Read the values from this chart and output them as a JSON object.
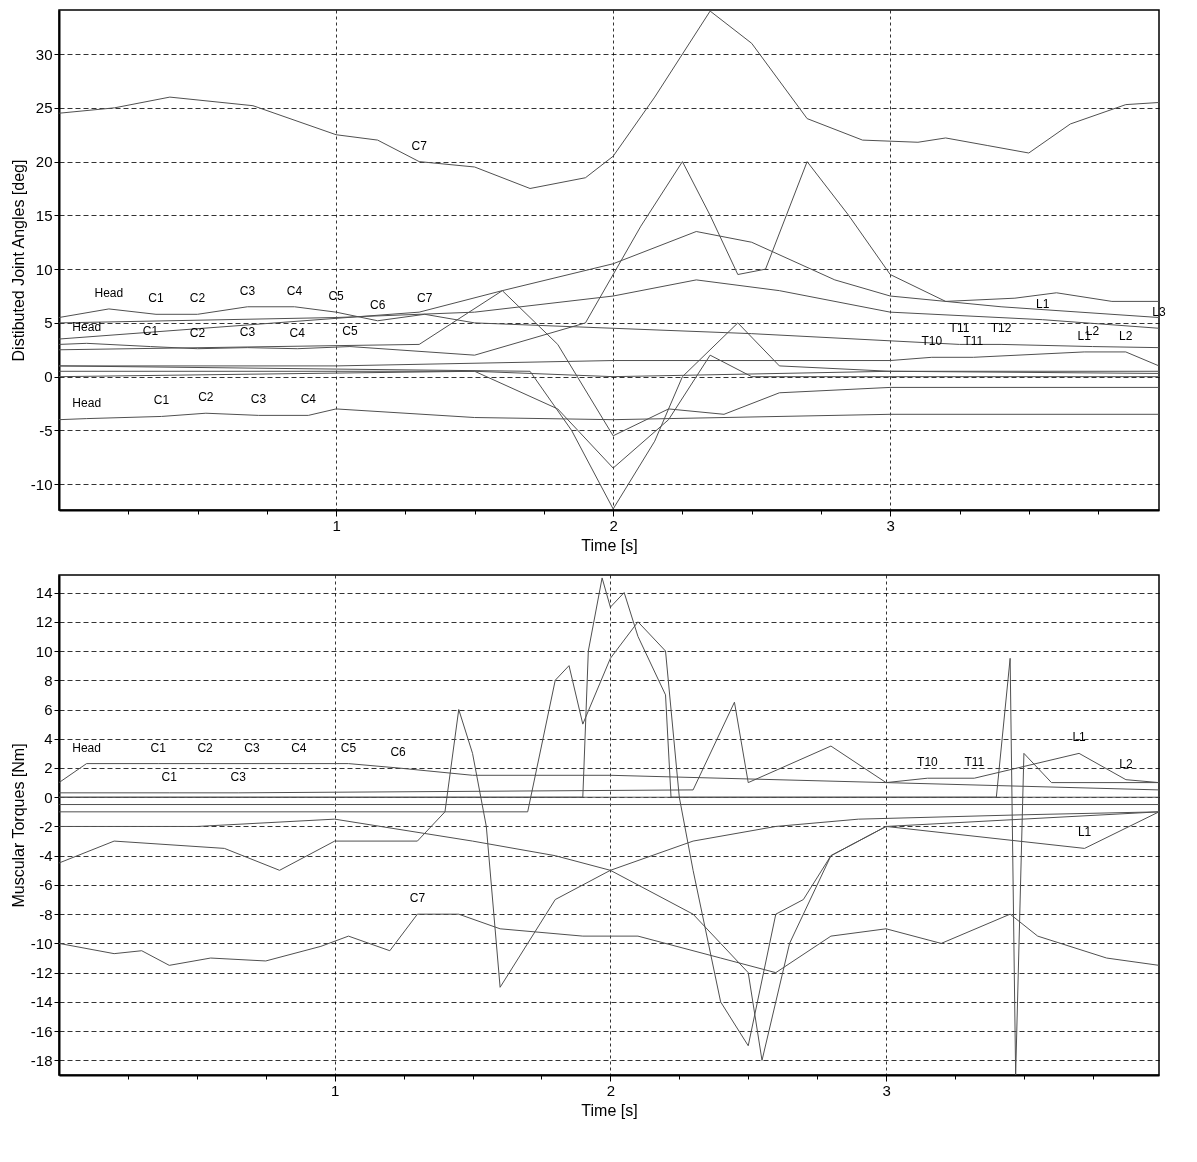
{
  "chart_data": [
    {
      "type": "line",
      "xlabel": "Time [s]",
      "ylabel": "Distibuted Joint Angles [deg]",
      "xlim": [
        0,
        3.97
      ],
      "ylim": [
        -12.4,
        34.1
      ],
      "grid": true,
      "legend": false,
      "line_style": "solid",
      "marker": "none",
      "xticks": [
        {
          "value": 0.25,
          "label": null
        },
        {
          "value": 0.5,
          "label": null
        },
        {
          "value": 0.75,
          "label": null
        },
        1,
        {
          "value": 1.25,
          "label": null
        },
        {
          "value": 1.5,
          "label": null
        },
        {
          "value": 1.75,
          "label": null
        },
        2,
        {
          "value": 2.25,
          "label": null
        },
        {
          "value": 2.5,
          "label": null
        },
        {
          "value": 2.75,
          "label": null
        },
        3,
        {
          "value": 3.25,
          "label": null
        },
        {
          "value": 3.5,
          "label": null
        },
        {
          "value": 3.75,
          "label": null
        }
      ],
      "yticks": [
        -10,
        -5,
        0,
        5,
        10,
        15,
        20,
        25,
        30
      ],
      "series": [
        {
          "color": "#505050",
          "x": [
            0,
            0.2,
            0.4,
            0.7,
            1,
            1.15,
            1.3,
            1.5,
            1.7,
            1.9,
            2.0,
            2.15,
            2.35,
            2.5,
            2.7,
            2.9,
            3.1,
            3.2,
            3.35,
            3.5,
            3.65,
            3.85,
            3.97
          ],
          "values": [
            24.5,
            25,
            26,
            25.2,
            22.5,
            22,
            20,
            19.5,
            17.5,
            18.5,
            20.5,
            26,
            34,
            31,
            24,
            22,
            21.8,
            22.2,
            21.5,
            20.8,
            23.5,
            25.3,
            25.5
          ]
        },
        {
          "color": "#505050",
          "x": [
            0,
            0.1,
            0.33,
            0.5,
            0.68,
            0.86,
            1.05,
            1.5,
            1.9,
            2.1,
            2.25,
            2.35,
            2.45,
            2.55,
            2.7,
            2.85,
            3.0,
            3.2,
            3.45,
            3.6,
            3.8,
            3.97
          ],
          "values": [
            3,
            3.1,
            2.8,
            2.6,
            2.7,
            2.6,
            2.8,
            2,
            5,
            14,
            20,
            15,
            9.5,
            10,
            20,
            15,
            9.5,
            7,
            7.3,
            7.8,
            7,
            7
          ]
        },
        {
          "color": "#505050",
          "x": [
            0,
            1.3,
            1.6,
            2.0,
            2.3,
            2.5,
            2.8,
            3.0,
            3.4,
            3.97
          ],
          "values": [
            3.5,
            6,
            8,
            10.5,
            13.5,
            12.5,
            9,
            7.5,
            6.5,
            5.5
          ]
        },
        {
          "color": "#505050",
          "x": [
            0,
            1,
            1.5,
            2,
            2.3,
            2.6,
            3,
            3.55,
            3.97
          ],
          "values": [
            5,
            5.5,
            6,
            7.5,
            9,
            8,
            6,
            5.3,
            4.5
          ]
        },
        {
          "color": "#505050",
          "x": [
            0,
            1.7,
            1.85,
            2.0,
            2.15,
            2.25,
            2.45,
            2.6,
            3,
            3.97
          ],
          "values": [
            1,
            0.5,
            -5,
            -12.3,
            -6,
            0,
            5,
            1,
            0.5,
            0.5
          ]
        },
        {
          "color": "#505050",
          "x": [
            0,
            1.5,
            1.8,
            2.0,
            2.2,
            2.35,
            2.5,
            3.97
          ],
          "values": [
            0.5,
            0.5,
            -3,
            -8.5,
            -4,
            2,
            0,
            0
          ]
        },
        {
          "color": "#505050",
          "x": [
            0,
            1.3,
            1.6,
            1.8,
            2.0,
            2.2,
            2.4,
            2.6,
            3.0,
            3.97
          ],
          "values": [
            2.5,
            3,
            8,
            3,
            -5.5,
            -3,
            -3.5,
            -1.5,
            -1,
            -1
          ]
        },
        {
          "color": "#505050",
          "x": [
            0,
            0.1,
            0.37,
            0.53,
            0.72,
            0.9,
            1,
            1.5,
            2,
            3,
            3.97
          ],
          "values": [
            -4,
            -3.9,
            -3.7,
            -3.4,
            -3.6,
            -3.6,
            -3,
            -3.8,
            -4,
            -3.5,
            -3.5
          ]
        },
        {
          "color": "#505050",
          "x": [
            0,
            1.5,
            2,
            3,
            3.97
          ],
          "values": [
            0,
            0.5,
            0,
            0.5,
            0.3
          ]
        },
        {
          "color": "#505050",
          "x": [
            0,
            1,
            2,
            3,
            3.15,
            3.3,
            3.7,
            3.85,
            3.97
          ],
          "values": [
            1,
            1,
            1.5,
            1.5,
            1.8,
            1.8,
            2.3,
            2.3,
            1
          ]
        },
        {
          "color": "#505050",
          "x": [
            0,
            0.18,
            0.35,
            0.5,
            0.68,
            0.85,
            1.0,
            1.15,
            1.32,
            1.5,
            2,
            2.5,
            3.25,
            3.4,
            3.73,
            3.97
          ],
          "values": [
            5.5,
            6.3,
            5.8,
            5.8,
            6.5,
            6.5,
            6.0,
            5.2,
            5.8,
            5,
            4.5,
            4,
            3.0,
            3.0,
            2.8,
            2.7
          ]
        }
      ],
      "annotations": [
        {
          "text": "Head",
          "x": 0.1,
          "y": -3.9
        },
        {
          "text": "C1",
          "x": 0.37,
          "y": -3.7
        },
        {
          "text": "C2",
          "x": 0.53,
          "y": -3.4
        },
        {
          "text": "C3",
          "x": 0.72,
          "y": -3.6
        },
        {
          "text": "C4",
          "x": 0.9,
          "y": -3.6
        },
        {
          "text": "Head",
          "x": 0.18,
          "y": 6.3
        },
        {
          "text": "C1",
          "x": 0.35,
          "y": 5.8
        },
        {
          "text": "C2",
          "x": 0.5,
          "y": 5.8
        },
        {
          "text": "C3",
          "x": 0.68,
          "y": 6.5
        },
        {
          "text": "C4",
          "x": 0.85,
          "y": 6.5
        },
        {
          "text": "C5",
          "x": 1.0,
          "y": 6.0
        },
        {
          "text": "C6",
          "x": 1.15,
          "y": 5.2
        },
        {
          "text": "C7",
          "x": 1.32,
          "y": 5.8
        },
        {
          "text": "Head",
          "x": 0.1,
          "y": 3.1
        },
        {
          "text": "C1",
          "x": 0.33,
          "y": 2.8
        },
        {
          "text": "C2",
          "x": 0.5,
          "y": 2.6
        },
        {
          "text": "C3",
          "x": 0.68,
          "y": 2.7
        },
        {
          "text": "C4",
          "x": 0.86,
          "y": 2.6
        },
        {
          "text": "C5",
          "x": 1.05,
          "y": 2.8
        },
        {
          "text": "C7",
          "x": 1.3,
          "y": 20.0
        },
        {
          "text": "L1",
          "x": 3.55,
          "y": 5.3
        },
        {
          "text": "L2",
          "x": 3.73,
          "y": 2.8
        },
        {
          "text": "L3",
          "x": 3.97,
          "y": 4.5
        },
        {
          "text": "T11",
          "x": 3.25,
          "y": 3.0
        },
        {
          "text": "T12",
          "x": 3.4,
          "y": 3.0
        },
        {
          "text": "T10",
          "x": 3.15,
          "y": 1.8
        },
        {
          "text": "T11",
          "x": 3.3,
          "y": 1.8
        },
        {
          "text": "L1",
          "x": 3.7,
          "y": 2.3
        },
        {
          "text": "L2",
          "x": 3.85,
          "y": 2.3
        }
      ]
    },
    {
      "type": "line",
      "xlabel": "Time [s]",
      "ylabel": "Muscular Torques [Nm]",
      "xlim": [
        0,
        3.99
      ],
      "ylim": [
        -19.0,
        15.2
      ],
      "grid": true,
      "legend": false,
      "line_style": "solid",
      "marker": "none",
      "xticks": [
        {
          "value": 0.25,
          "label": null
        },
        {
          "value": 0.5,
          "label": null
        },
        {
          "value": 0.75,
          "label": null
        },
        1,
        {
          "value": 1.25,
          "label": null
        },
        {
          "value": 1.5,
          "label": null
        },
        {
          "value": 1.75,
          "label": null
        },
        2,
        {
          "value": 2.25,
          "label": null
        },
        {
          "value": 2.5,
          "label": null
        },
        {
          "value": 2.75,
          "label": null
        },
        3,
        {
          "value": 3.25,
          "label": null
        },
        {
          "value": 3.5,
          "label": null
        },
        {
          "value": 3.75,
          "label": null
        }
      ],
      "yticks": [
        -18,
        -16,
        -14,
        -12,
        -10,
        -8,
        -6,
        -4,
        -2,
        0,
        2,
        4,
        6,
        8,
        10,
        12,
        14
      ],
      "series": [
        {
          "color": "#505050",
          "x": [
            0,
            0.2,
            0.3,
            0.4,
            0.55,
            0.75,
            0.95,
            1.05,
            1.2,
            1.3,
            1.45,
            1.6,
            1.9,
            2.1,
            2.4,
            2.6,
            2.8,
            3.0,
            3.2,
            3.45,
            3.55,
            3.8,
            3.99
          ],
          "values": [
            -10,
            -10.7,
            -10.5,
            -11.5,
            -11,
            -11.2,
            -10.2,
            -9.5,
            -10.5,
            -8,
            -8,
            -9,
            -9.5,
            -9.5,
            -11,
            -12,
            -9.5,
            -9,
            -10,
            -8,
            -9.5,
            -11,
            -11.5
          ]
        },
        {
          "color": "#505050",
          "x": [
            0,
            1.9,
            1.92,
            1.97,
            2.0,
            2.05,
            2.1,
            2.2,
            2.22,
            3.99
          ],
          "values": [
            0,
            0,
            10,
            15,
            13,
            14,
            11,
            7,
            0,
            0
          ]
        },
        {
          "color": "#505050",
          "x": [
            0,
            1.7,
            1.8,
            1.85,
            1.9,
            2.0,
            2.1,
            2.2,
            2.25,
            2.3,
            2.4,
            2.5,
            2.6,
            2.7,
            2.8,
            3.0,
            3.99
          ],
          "values": [
            -1,
            -1,
            8,
            9,
            5,
            9.5,
            12,
            10,
            0,
            -5,
            -14,
            -17,
            -8,
            -7,
            -4,
            -2,
            -1
          ]
        },
        {
          "color": "#505050",
          "x": [
            0,
            0.2,
            0.6,
            0.8,
            1.0,
            1.3,
            1.4,
            1.45,
            1.5,
            1.55,
            1.6,
            1.7,
            1.8,
            2.0,
            2.3,
            2.5,
            2.55,
            2.65,
            2.8,
            3.0,
            3.72,
            3.99
          ],
          "values": [
            -4.5,
            -3,
            -3.5,
            -5,
            -3,
            -3,
            -1,
            6,
            3,
            -2,
            -13,
            -10,
            -7,
            -5,
            -8,
            -12,
            -18,
            -10,
            -4,
            -2,
            -3.5,
            -1
          ]
        },
        {
          "color": "#505050",
          "x": [
            0,
            3.4,
            3.45,
            3.47,
            3.5,
            3.6,
            3.99
          ],
          "values": [
            0,
            0,
            9.5,
            -19,
            3,
            1,
            1
          ]
        },
        {
          "color": "#505050",
          "x": [
            0,
            1,
            2,
            3,
            3.99
          ],
          "values": [
            -0.5,
            -0.5,
            -0.5,
            -0.5,
            -0.5
          ]
        },
        {
          "color": "#505050",
          "x": [
            0,
            0.1,
            0.36,
            0.53,
            0.7,
            0.87,
            1.05,
            1.23,
            1.5,
            2,
            3,
            3.15,
            3.32,
            3.7,
            3.87,
            3.99
          ],
          "values": [
            1,
            2.3,
            2.3,
            2.3,
            2.3,
            2.3,
            2.3,
            2.0,
            1.5,
            1.5,
            1,
            1.3,
            1.3,
            3.0,
            1.2,
            1
          ]
        },
        {
          "color": "#505050",
          "x": [
            0,
            0.5,
            1,
            1.5,
            1.8,
            2.0,
            2.3,
            2.6,
            2.9,
            3.5,
            3.99
          ],
          "values": [
            -2,
            -2,
            -1.5,
            -3,
            -4,
            -5,
            -3,
            -2,
            -1.5,
            -1.2,
            -1
          ]
        },
        {
          "color": "#505050",
          "x": [
            0,
            0.4,
            0.65,
            2.3,
            2.45,
            2.5,
            2.8,
            3,
            3.99
          ],
          "values": [
            0.3,
            0.3,
            0.3,
            0.5,
            6.5,
            1,
            3.5,
            1,
            0.5
          ]
        }
      ],
      "annotations": [
        {
          "text": "Head",
          "x": 0.1,
          "y": 2.3
        },
        {
          "text": "C1",
          "x": 0.36,
          "y": 2.3
        },
        {
          "text": "C2",
          "x": 0.53,
          "y": 2.3
        },
        {
          "text": "C3",
          "x": 0.7,
          "y": 2.3
        },
        {
          "text": "C4",
          "x": 0.87,
          "y": 2.3
        },
        {
          "text": "C5",
          "x": 1.05,
          "y": 2.3
        },
        {
          "text": "C6",
          "x": 1.23,
          "y": 2.0
        },
        {
          "text": "C1",
          "x": 0.4,
          "y": 0.3
        },
        {
          "text": "C3",
          "x": 0.65,
          "y": 0.3
        },
        {
          "text": "C7",
          "x": 1.3,
          "y": -8
        },
        {
          "text": "L1",
          "x": 3.7,
          "y": 3.0
        },
        {
          "text": "L2",
          "x": 3.87,
          "y": 1.2
        },
        {
          "text": "L1",
          "x": 3.72,
          "y": -3.5
        },
        {
          "text": "T10",
          "x": 3.15,
          "y": 1.3
        },
        {
          "text": "T11",
          "x": 3.32,
          "y": 1.3
        }
      ]
    }
  ]
}
